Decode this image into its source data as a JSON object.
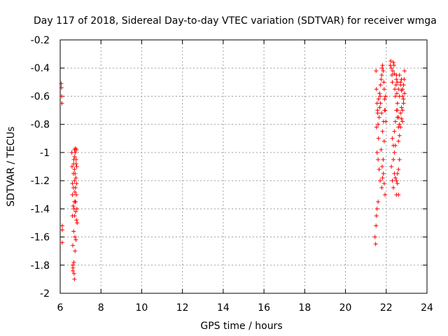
{
  "chart_data": {
    "type": "scatter",
    "title": "Day 117 of 2018, Sidereal Day-to-day VTEC variation (SDTVAR) for receiver wmga",
    "xlabel": "GPS time / hours",
    "ylabel": "SDTVAR / TECUs",
    "xlim": [
      6,
      24
    ],
    "ylim": [
      -2,
      -0.2
    ],
    "xticks": [
      6,
      8,
      10,
      12,
      14,
      16,
      18,
      20,
      22,
      24
    ],
    "yticks": [
      -2,
      -1.8,
      -1.6,
      -1.4,
      -1.2,
      -1,
      -0.8,
      -0.6,
      -0.4,
      -0.2
    ],
    "grid": true,
    "marker": "+",
    "colors": {
      "marker": "#ff0000",
      "grid": "#a0a0a0",
      "axis": "#000000"
    },
    "series": [
      {
        "name": "SDTVAR",
        "x": [
          6.05,
          6.06,
          6.07,
          6.08,
          6.1,
          6.1,
          6.1,
          6.57,
          6.58,
          6.6,
          6.6,
          6.6,
          6.62,
          6.62,
          6.63,
          6.64,
          6.65,
          6.65,
          6.66,
          6.67,
          6.67,
          6.68,
          6.68,
          6.69,
          6.7,
          6.7,
          6.7,
          6.71,
          6.71,
          6.72,
          6.72,
          6.73,
          6.73,
          6.74,
          6.75,
          6.75,
          6.76,
          6.76,
          6.77,
          6.77,
          6.78,
          6.79,
          6.8,
          6.8,
          6.8,
          6.81,
          6.82,
          6.83,
          6.62,
          6.66,
          6.7,
          6.74,
          6.78,
          21.45,
          21.48,
          21.5,
          21.52,
          21.55,
          21.6,
          21.5,
          21.52,
          21.55,
          21.58,
          21.6,
          21.62,
          21.65,
          21.68,
          21.7,
          21.72,
          21.75,
          21.78,
          21.8,
          21.82,
          21.85,
          21.88,
          21.9,
          21.92,
          21.95,
          21.98,
          21.55,
          21.6,
          21.65,
          21.7,
          21.75,
          21.8,
          21.85,
          21.9,
          21.52,
          21.57,
          21.62,
          21.67,
          21.72,
          21.77,
          21.82,
          21.87,
          21.92,
          21.97,
          21.78,
          21.82,
          21.86,
          21.9,
          21.94,
          22.2,
          22.22,
          22.25,
          22.28,
          22.3,
          22.32,
          22.35,
          22.38,
          22.4,
          22.42,
          22.45,
          22.48,
          22.5,
          22.52,
          22.55,
          22.3,
          22.35,
          22.4,
          22.45,
          22.5,
          22.55,
          22.6,
          22.25,
          22.3,
          22.35,
          22.4,
          22.45,
          22.5,
          22.55,
          22.6,
          22.65,
          22.35,
          22.4,
          22.45,
          22.5,
          22.55,
          22.6,
          22.5,
          22.55,
          22.6,
          22.65,
          22.7,
          22.75,
          22.8,
          22.85,
          22.9,
          22.55,
          22.6,
          22.65,
          22.7,
          22.75,
          22.8,
          22.85,
          22.6,
          22.65,
          22.7,
          22.75,
          22.8,
          22.65,
          22.7,
          22.75,
          22.8,
          22.85,
          22.88,
          22.9
        ],
        "y": [
          -0.51,
          -0.54,
          -0.6,
          -0.65,
          -1.52,
          -1.55,
          -1.64,
          -1.0,
          -1.1,
          -1.22,
          -1.3,
          -1.45,
          -1.8,
          -1.84,
          -1.82,
          -1.38,
          -1.25,
          -1.15,
          -1.08,
          -1.05,
          -1.78,
          -1.86,
          -1.4,
          -1.35,
          -1.2,
          -1.12,
          -0.98,
          -1.03,
          -1.45,
          -1.28,
          -1.6,
          -1.7,
          -1.15,
          -1.0,
          -0.97,
          -1.25,
          -1.35,
          -1.42,
          -1.62,
          -1.18,
          -1.05,
          -1.3,
          -1.22,
          -1.48,
          -0.98,
          -1.1,
          -1.4,
          -1.5,
          -1.66,
          -1.56,
          -1.9,
          -1.35,
          -1.08,
          -1.6,
          -1.65,
          -1.52,
          -1.45,
          -1.4,
          -1.35,
          -0.42,
          -0.55,
          -0.65,
          -0.72,
          -0.8,
          -0.9,
          -0.75,
          -0.68,
          -0.6,
          -0.52,
          -0.48,
          -0.45,
          -0.4,
          -0.38,
          -0.42,
          -0.5,
          -0.55,
          -0.62,
          -0.7,
          -0.78,
          -1.0,
          -1.05,
          -1.12,
          -1.2,
          -0.98,
          -1.1,
          -1.05,
          -0.92,
          -0.82,
          -0.7,
          -0.62,
          -0.58,
          -0.65,
          -0.72,
          -0.85,
          -0.78,
          -0.7,
          -0.6,
          -1.25,
          -1.18,
          -1.15,
          -1.22,
          -1.3,
          -0.38,
          -0.35,
          -0.4,
          -0.45,
          -0.5,
          -0.42,
          -0.36,
          -0.38,
          -0.44,
          -0.55,
          -0.6,
          -0.52,
          -0.48,
          -0.58,
          -0.65,
          -0.9,
          -0.95,
          -0.85,
          -0.78,
          -0.7,
          -0.75,
          -0.82,
          -1.1,
          -1.2,
          -1.25,
          -1.15,
          -1.18,
          -1.3,
          -1.22,
          -1.12,
          -1.05,
          -1.05,
          -1.0,
          -0.95,
          -1.2,
          -1.15,
          -1.3,
          -0.45,
          -0.5,
          -0.55,
          -0.6,
          -0.52,
          -0.48,
          -0.55,
          -0.62,
          -0.58,
          -0.7,
          -0.75,
          -0.8,
          -0.72,
          -0.68,
          -0.78,
          -0.65,
          -0.92,
          -0.88,
          -0.82,
          -0.76,
          -0.7,
          -0.45,
          -0.5,
          -0.56,
          -0.6,
          -0.52,
          -0.48,
          -0.42
        ]
      }
    ]
  }
}
